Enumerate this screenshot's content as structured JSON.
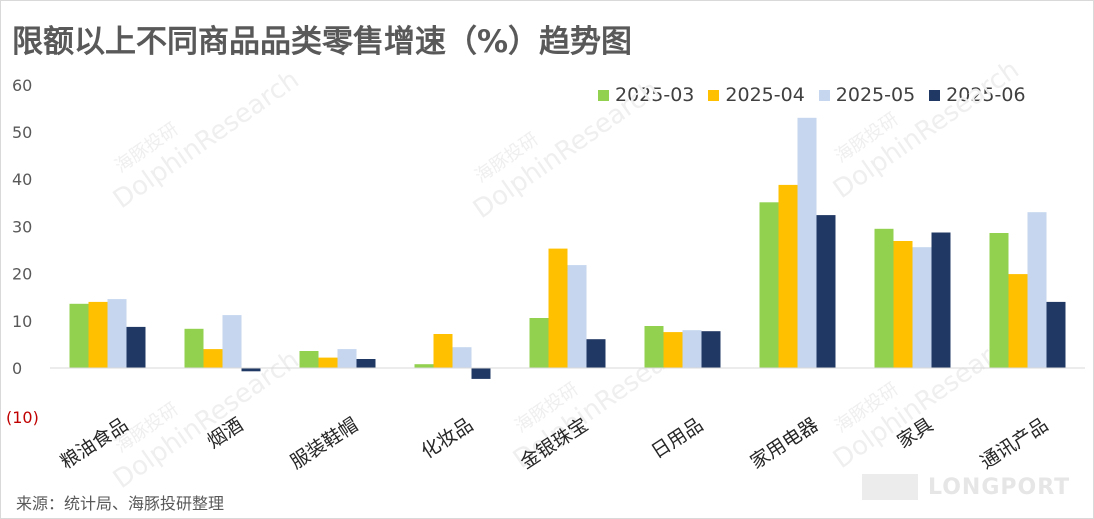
{
  "title": "限额以上不同商品品类零售增速（%）趋势图",
  "source": "来源：统计局、海豚投研整理",
  "brand": "LONGPORT",
  "watermark": [
    "海豚投研",
    "DolphinResearch"
  ],
  "colors": {
    "s1": "#92d050",
    "s2": "#ffc000",
    "s3": "#c5d6ee",
    "s4": "#203864",
    "axis_text": "#595959",
    "negative_tick": "#c00000",
    "baseline": "#d9d9d9"
  },
  "chart_data": {
    "type": "bar",
    "title": "限额以上不同商品品类零售增速（%）趋势图",
    "categories": [
      "粮油食品",
      "烟酒",
      "服装鞋帽",
      "化妆品",
      "金银珠宝",
      "日用品",
      "家用电器",
      "家具",
      "通讯产品"
    ],
    "series": [
      {
        "name": "2025-03",
        "values": [
          13.6,
          8.3,
          3.6,
          0.8,
          10.6,
          8.9,
          35.1,
          29.5,
          28.6
        ]
      },
      {
        "name": "2025-04",
        "values": [
          14.0,
          4.0,
          2.2,
          7.2,
          25.3,
          7.6,
          38.8,
          26.9,
          19.9
        ]
      },
      {
        "name": "2025-05",
        "values": [
          14.6,
          11.2,
          4.0,
          4.4,
          21.8,
          8.0,
          53.0,
          25.6,
          33.0
        ]
      },
      {
        "name": "2025-06",
        "values": [
          8.7,
          -0.7,
          1.9,
          -2.3,
          6.1,
          7.8,
          32.4,
          28.7,
          14.0
        ]
      }
    ],
    "yticks": [
      "(10)",
      "0",
      "10",
      "20",
      "30",
      "40",
      "50",
      "60"
    ],
    "ylim": [
      -10,
      60
    ],
    "grid": false,
    "legend": "top-right"
  }
}
